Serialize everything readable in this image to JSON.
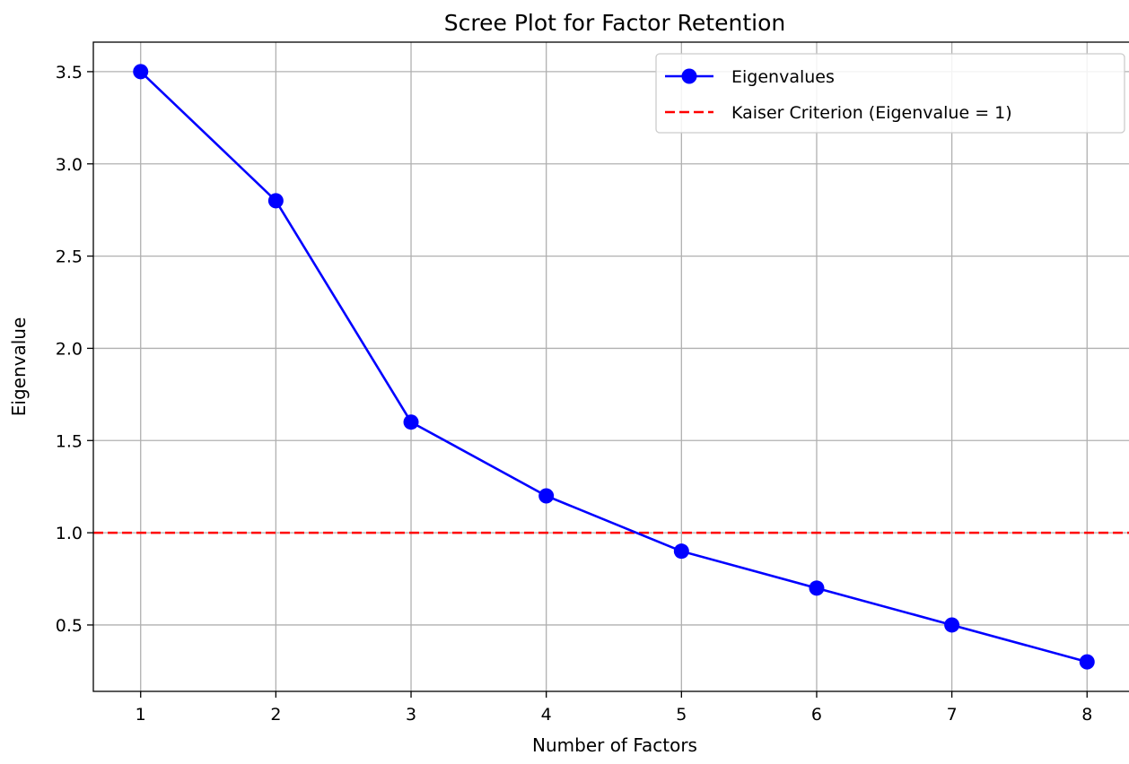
{
  "chart_data": {
    "type": "line",
    "title": "Scree Plot for Factor Retention",
    "xlabel": "Number of Factors",
    "ylabel": "Eigenvalue",
    "x": [
      1,
      2,
      3,
      4,
      5,
      6,
      7,
      8
    ],
    "series": [
      {
        "name": "Eigenvalues",
        "values": [
          3.5,
          2.8,
          1.6,
          1.2,
          0.9,
          0.7,
          0.5,
          0.3
        ],
        "color": "#0000ff",
        "marker": "circle"
      }
    ],
    "reference_lines": [
      {
        "name": "Kaiser Criterion (Eigenvalue = 1)",
        "y": 1.0,
        "color": "#ff0000",
        "style": "dashed"
      }
    ],
    "xticks": [
      "1",
      "2",
      "3",
      "4",
      "5",
      "6",
      "7",
      "8"
    ],
    "yticks": [
      "0.5",
      "1.0",
      "1.5",
      "2.0",
      "2.5",
      "3.0",
      "3.5"
    ],
    "xlim": [
      0.65,
      8.35
    ],
    "ylim": [
      0.14,
      3.66
    ],
    "grid": true,
    "legend_position": "top-right"
  }
}
